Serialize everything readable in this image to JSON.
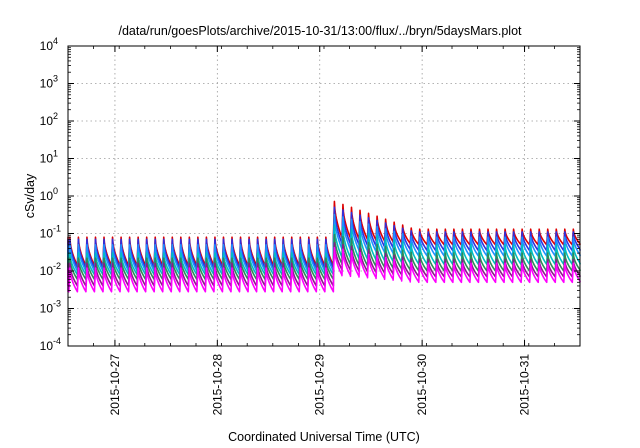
{
  "chart_data": {
    "type": "line",
    "title": "/data/run/goesPlots/archive/2015-10-31/13:00/flux/../bryn/5daysMars.plot",
    "xlabel": "Coordinated Universal Time (UTC)",
    "ylabel": "cSv/day",
    "yscale": "log",
    "ylim": [
      0.0001,
      10000
    ],
    "xlim": [
      "2015-10-26 13:00",
      "2015-10-31 13:00"
    ],
    "grid": true,
    "legend": "none",
    "yticks": [
      {
        "base": "10",
        "exp": "-4"
      },
      {
        "base": "10",
        "exp": "-3"
      },
      {
        "base": "10",
        "exp": "-2"
      },
      {
        "base": "10",
        "exp": "-1"
      },
      {
        "base": "10",
        "exp": "0"
      },
      {
        "base": "10",
        "exp": "1"
      },
      {
        "base": "10",
        "exp": "2"
      },
      {
        "base": "10",
        "exp": "3"
      },
      {
        "base": "10",
        "exp": "4"
      }
    ],
    "xticks": [
      {
        "label": "2015-10-27",
        "x": "2015-10-27 00:00"
      },
      {
        "label": "2015-10-28",
        "x": "2015-10-28 00:00"
      },
      {
        "label": "2015-10-29",
        "x": "2015-10-29 00:00"
      },
      {
        "label": "2015-10-30",
        "x": "2015-10-30 00:00"
      },
      {
        "label": "2015-10-31",
        "x": "2015-10-31 00:00"
      }
    ],
    "sawtooth_period_hours": 2,
    "event_start": "2015-10-29 02:00",
    "series": [
      {
        "color": "#dd0000",
        "before_peak": 0.08,
        "before_trough": 0.014,
        "after_peak": 0.8,
        "after_peak_late": 0.13,
        "after_trough": 0.05
      },
      {
        "color": "#2f2fdd",
        "before_peak": 0.07,
        "before_trough": 0.012,
        "after_peak": 0.55,
        "after_peak_late": 0.11,
        "after_trough": 0.035
      },
      {
        "color": "#1e90ff",
        "before_peak": 0.05,
        "before_trough": 0.01,
        "after_peak": 0.35,
        "after_peak_late": 0.08,
        "after_trough": 0.025
      },
      {
        "color": "#00bfbf",
        "before_peak": 0.03,
        "before_trough": 0.008,
        "after_peak": 0.18,
        "after_peak_late": 0.05,
        "after_trough": 0.015
      },
      {
        "color": "#2e8b57",
        "before_peak": 0.022,
        "before_trough": 0.006,
        "after_peak": 0.1,
        "after_peak_late": 0.03,
        "after_trough": 0.01
      },
      {
        "color": "#8b1a8b",
        "before_peak": 0.016,
        "before_trough": 0.004,
        "after_peak": 0.06,
        "after_peak_late": 0.02,
        "after_trough": 0.007
      },
      {
        "color": "#ff00ff",
        "before_peak": 0.012,
        "before_trough": 0.0028,
        "after_peak": 0.045,
        "after_peak_late": 0.016,
        "after_trough": 0.005
      }
    ]
  }
}
